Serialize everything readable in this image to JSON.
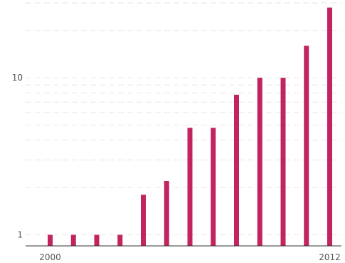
{
  "chart_data": {
    "type": "bar",
    "x": [
      2000,
      2001,
      2002,
      2003,
      2004,
      2005,
      2006,
      2007,
      2008,
      2009,
      2010,
      2011,
      2012
    ],
    "values": [
      1,
      1,
      1,
      1,
      1.8,
      2.2,
      4.8,
      4.8,
      7.8,
      10,
      10,
      16,
      28
    ],
    "y_scale": "log",
    "ylim": [
      0.85,
      30
    ],
    "y_ticks": [
      1,
      10
    ],
    "y_tick_labels": [
      "1",
      "10"
    ],
    "x_tick_labels": [
      "2000",
      "2012"
    ],
    "grid": true,
    "title": "",
    "xlabel": "",
    "ylabel": "",
    "colors": {
      "bar": "#c2245f",
      "grid": "#e6e6e6",
      "axis": "#333333"
    }
  }
}
